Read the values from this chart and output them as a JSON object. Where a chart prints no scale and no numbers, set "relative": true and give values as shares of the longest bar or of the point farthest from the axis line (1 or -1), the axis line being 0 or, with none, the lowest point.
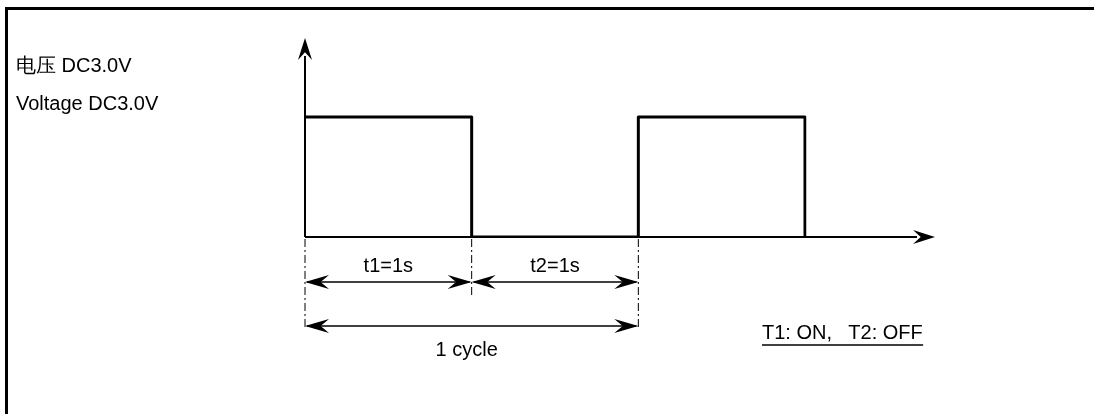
{
  "chart_data": {
    "type": "step",
    "relative": true,
    "categories": [
      null,
      null,
      null,
      null
    ],
    "series": [
      {
        "color": "#000000",
        "values": [
          1,
          0,
          1,
          0
        ]
      }
    ],
    "annotations": [
      "电压 DC3.0V",
      "Voltage DC3.0V",
      "t1=1s",
      "t2=1s",
      "1 cycle",
      "T1: ON,   T2: OFF"
    ],
    "marker": "none",
    "line_style": "solid"
  }
}
